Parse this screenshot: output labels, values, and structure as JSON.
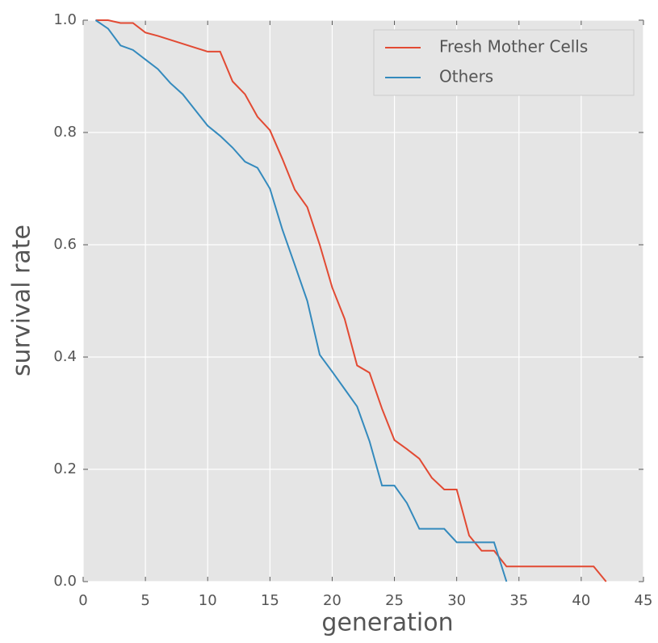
{
  "chart_data": {
    "type": "line",
    "xlabel": "generation",
    "ylabel": "survival rate",
    "xlim": [
      0,
      45
    ],
    "ylim": [
      0,
      1
    ],
    "xticks": [
      0,
      5,
      10,
      15,
      20,
      25,
      30,
      35,
      40,
      45
    ],
    "yticks": [
      {
        "value": 0,
        "label": "0.0"
      },
      0.2,
      0.4,
      0.6,
      0.8,
      {
        "value": 1,
        "label": "1.0"
      }
    ],
    "grid": true,
    "legend": "upper right",
    "series": [
      {
        "name": "Fresh Mother Cells",
        "color": "#e24a33",
        "x": [
          1,
          2,
          3,
          4,
          5,
          6,
          7,
          8,
          9,
          10,
          11,
          12,
          13,
          14,
          15,
          16,
          17,
          18,
          19,
          20,
          21,
          22,
          23,
          24,
          25,
          26,
          27,
          28,
          29,
          30,
          31,
          32,
          33,
          34,
          35,
          36,
          37,
          38,
          39,
          40,
          41,
          42
        ],
        "values": [
          1.0,
          1.0,
          0.995,
          0.995,
          0.978,
          0.972,
          0.965,
          0.958,
          0.951,
          0.944,
          0.944,
          0.891,
          0.868,
          0.828,
          0.804,
          0.753,
          0.698,
          0.667,
          0.6,
          0.524,
          0.468,
          0.385,
          0.372,
          0.308,
          0.252,
          0.236,
          0.219,
          0.185,
          0.164,
          0.164,
          0.082,
          0.055,
          0.055,
          0.027,
          0.027,
          0.027,
          0.027,
          0.027,
          0.027,
          0.027,
          0.027,
          0.0
        ]
      },
      {
        "name": "Others",
        "color": "#348abd",
        "x": [
          1,
          2,
          3,
          4,
          5,
          6,
          7,
          8,
          9,
          10,
          11,
          12,
          13,
          14,
          15,
          16,
          17,
          18,
          19,
          20,
          21,
          22,
          23,
          24,
          25,
          26,
          27,
          28,
          29,
          30,
          31,
          32,
          33,
          34
        ],
        "values": [
          1.0,
          0.985,
          0.955,
          0.947,
          0.93,
          0.913,
          0.888,
          0.868,
          0.84,
          0.812,
          0.794,
          0.773,
          0.748,
          0.737,
          0.7,
          0.627,
          0.564,
          0.5,
          0.404,
          0.374,
          0.343,
          0.312,
          0.25,
          0.171,
          0.171,
          0.14,
          0.094,
          0.094,
          0.094,
          0.07,
          0.07,
          0.07,
          0.07,
          0.0
        ]
      }
    ]
  }
}
